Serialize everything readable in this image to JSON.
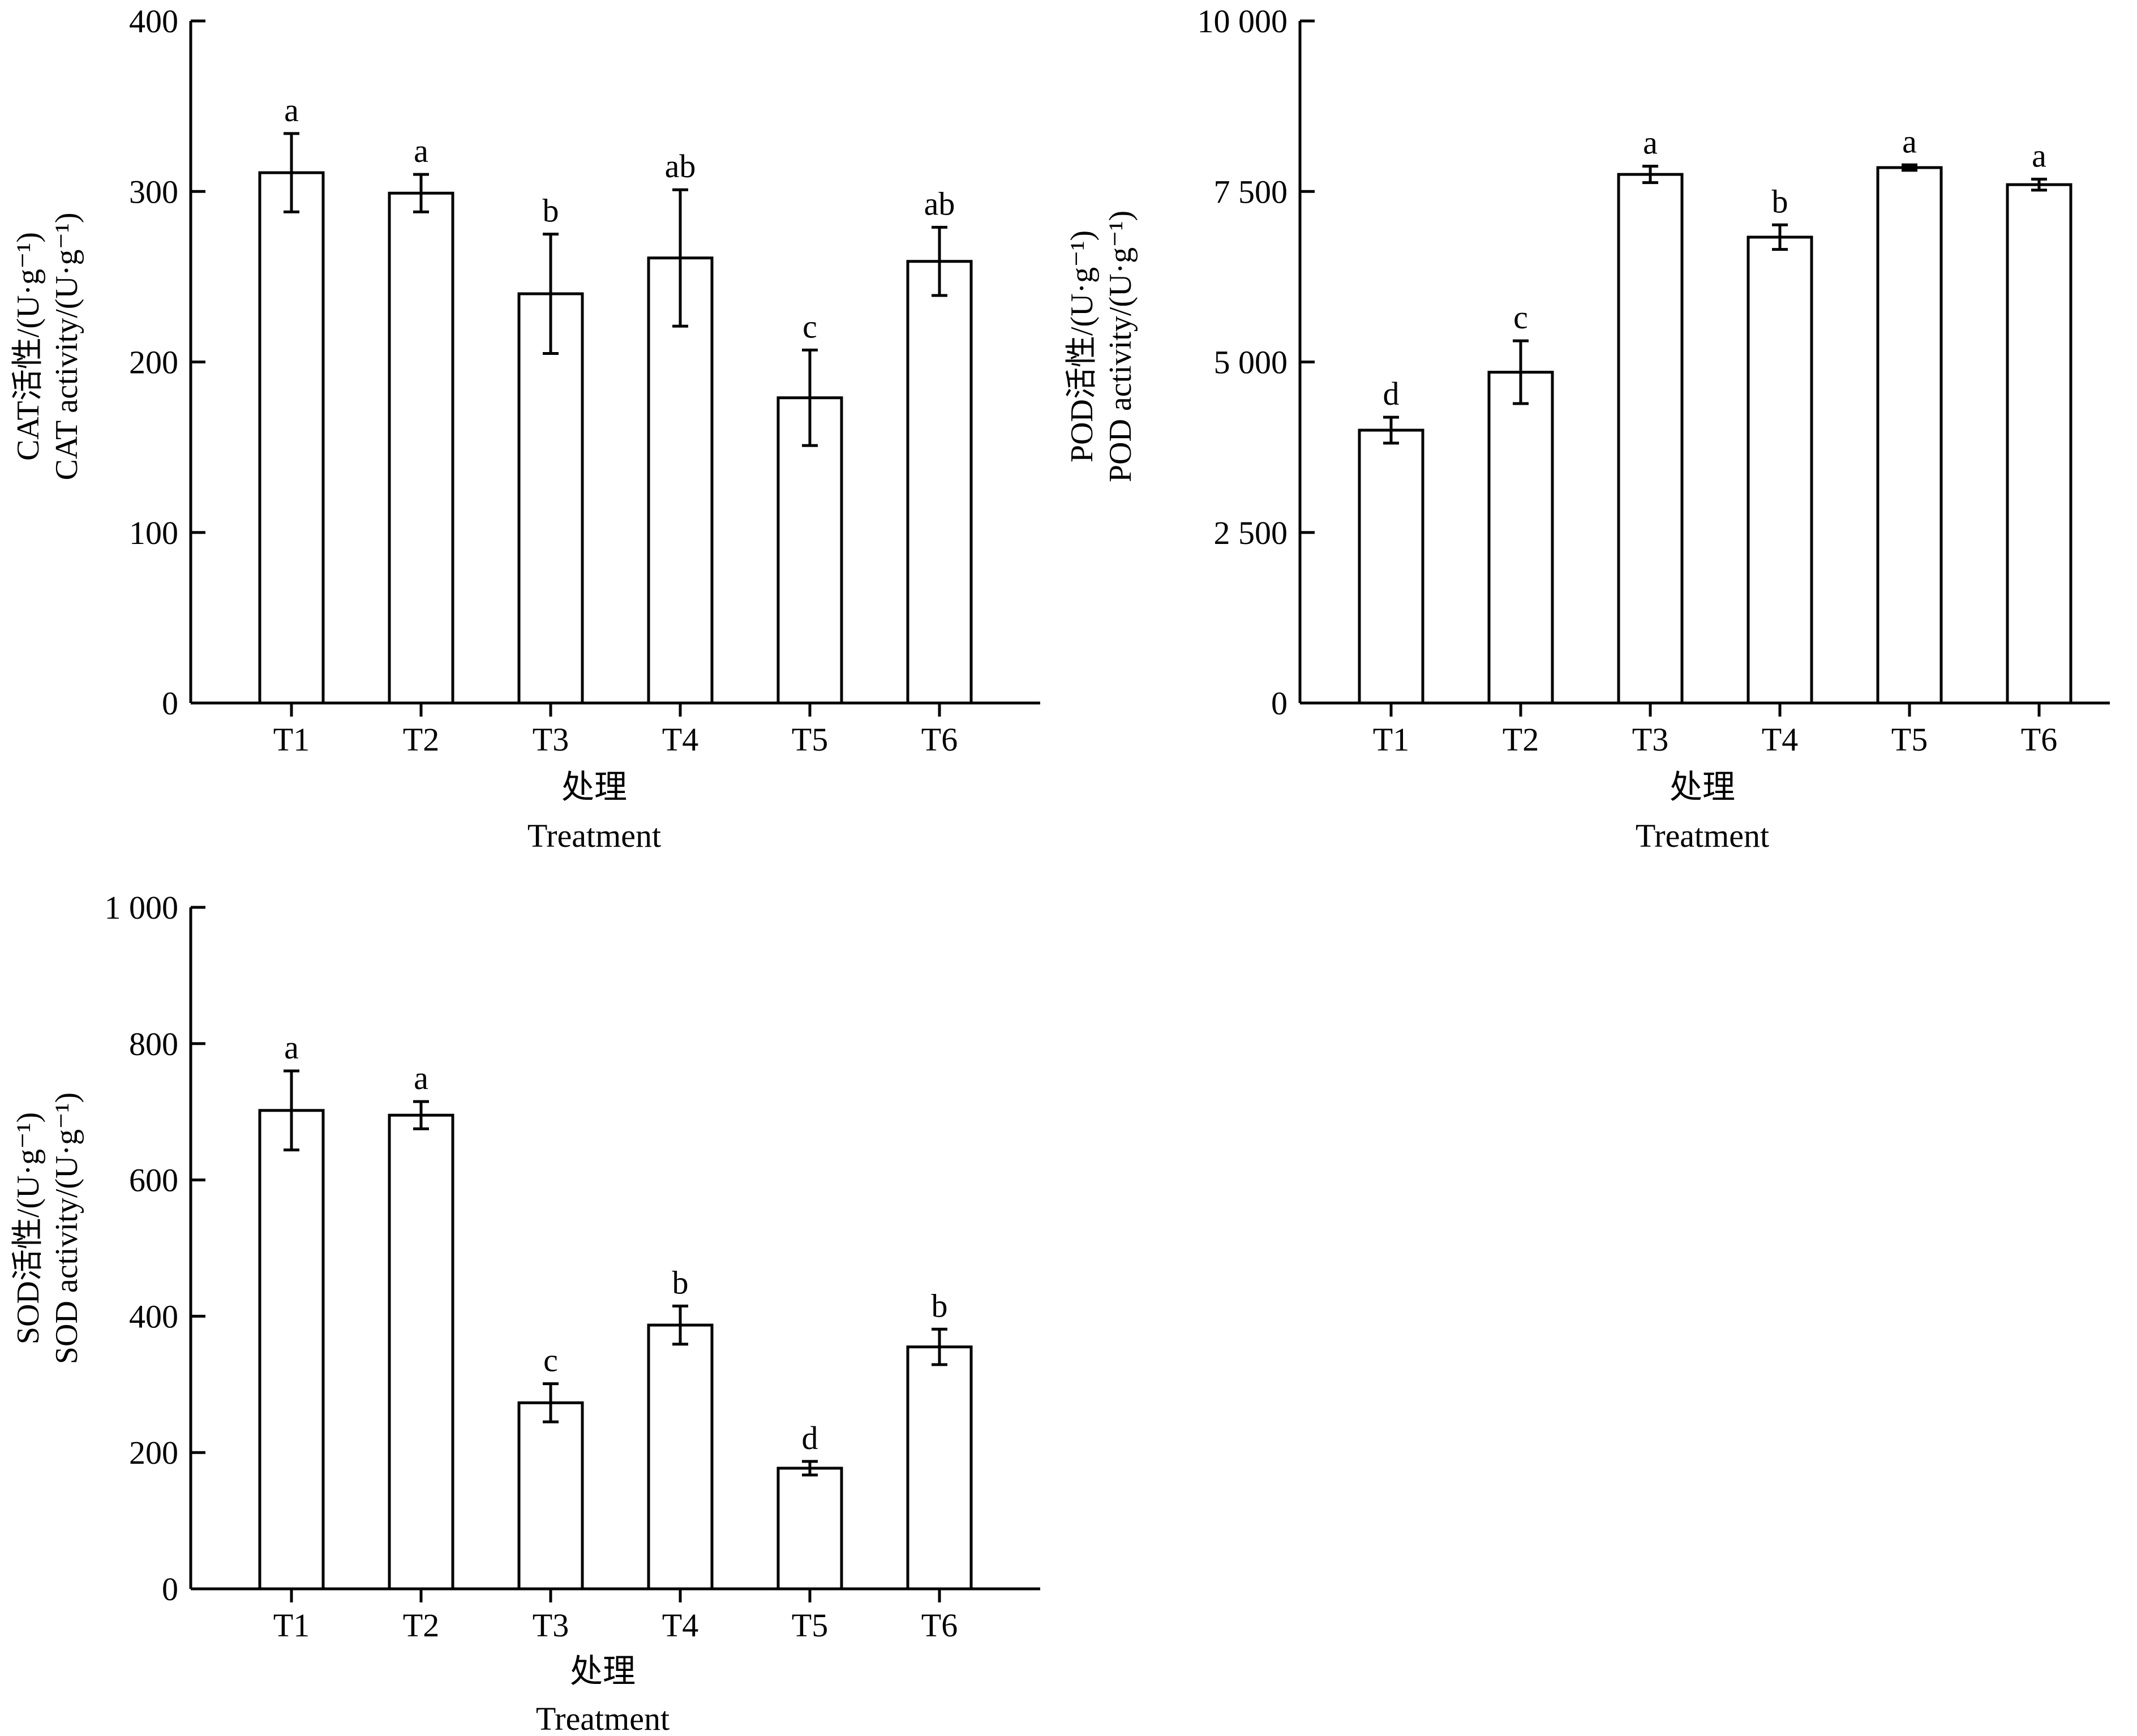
{
  "chart_data": [
    {
      "type": "bar",
      "ylabel_cn": "CAT活性/(U·g⁻¹)",
      "ylabel_en": "CAT activity/(U·g⁻¹)",
      "xlabel_cn": "处理",
      "xlabel_en": "Treatment",
      "categories": [
        "T1",
        "T2",
        "T3",
        "T4",
        "T5",
        "T6"
      ],
      "values": [
        311,
        299,
        240,
        261,
        179,
        259
      ],
      "errors": [
        23,
        11,
        35,
        40,
        28,
        20
      ],
      "letters": [
        "a",
        "a",
        "b",
        "ab",
        "c",
        "ab"
      ],
      "ylim": [
        0,
        400
      ],
      "yticks": [
        0,
        100,
        200,
        300,
        400
      ],
      "ytick_labels": [
        "0",
        "100",
        "200",
        "300",
        "400"
      ]
    },
    {
      "type": "bar",
      "ylabel_cn": "POD活性/(U·g⁻¹)",
      "ylabel_en": "POD activity/(U·g⁻¹)",
      "xlabel_cn": "处理",
      "xlabel_en": "Treatment",
      "categories": [
        "T1",
        "T2",
        "T3",
        "T4",
        "T5",
        "T6"
      ],
      "values": [
        4000,
        4850,
        7750,
        6830,
        7850,
        7600
      ],
      "errors": [
        190,
        460,
        120,
        180,
        40,
        80
      ],
      "letters": [
        "d",
        "c",
        "a",
        "b",
        "a",
        "a"
      ],
      "ylim": [
        0,
        10000
      ],
      "yticks": [
        0,
        2500,
        5000,
        7500,
        10000
      ],
      "ytick_labels": [
        "0",
        "2 500",
        "5 000",
        "7 500",
        "10 000"
      ]
    },
    {
      "type": "bar",
      "ylabel_cn": "SOD活性/(U·g⁻¹)",
      "ylabel_en": "SOD activity/(U·g⁻¹)",
      "xlabel_cn": "处理",
      "xlabel_en": "Treatment",
      "categories": [
        "T1",
        "T2",
        "T3",
        "T4",
        "T5",
        "T6"
      ],
      "values": [
        702,
        695,
        273,
        387,
        177,
        355
      ],
      "errors": [
        58,
        20,
        28,
        28,
        10,
        26
      ],
      "letters": [
        "a",
        "a",
        "c",
        "b",
        "d",
        "b"
      ],
      "ylim": [
        0,
        1000
      ],
      "yticks": [
        0,
        200,
        400,
        600,
        800,
        1000
      ],
      "ytick_labels": [
        "0",
        "200",
        "400",
        "600",
        "800",
        "1 000"
      ]
    }
  ]
}
